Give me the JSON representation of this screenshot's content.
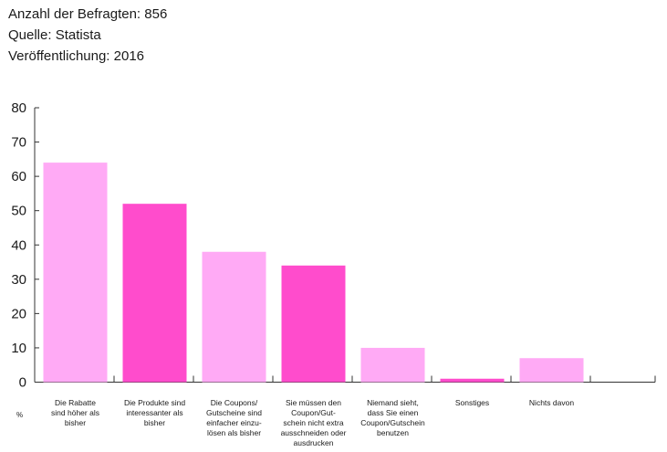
{
  "meta": {
    "respondents": "Anzahl der Befragten: 856",
    "source": "Quelle: Statista",
    "publication": "Veröffentlichung: 2016"
  },
  "chart_data": {
    "type": "bar",
    "title": "",
    "xlabel": "",
    "ylabel": "%",
    "ylim": [
      0,
      80
    ],
    "yticks": [
      "0",
      "10",
      "20",
      "30",
      "40",
      "50",
      "60",
      "70",
      "80"
    ],
    "grid": false,
    "categories": [
      [
        "Die Rabatte",
        "sind höher als",
        "bisher"
      ],
      [
        "Die Produkte sind",
        "interessanter als",
        "bisher"
      ],
      [
        "Die Coupons/",
        "Gutscheine sind",
        "einfacher einzu-",
        "lösen als bisher"
      ],
      [
        "Sie müssen den",
        "Coupon/Gut-",
        "schein nicht extra",
        "ausschneiden oder",
        "ausdrucken"
      ],
      [
        "Niemand sieht,",
        "dass Sie einen",
        "Coupon/Gutschein",
        "benutzen"
      ],
      [
        "Sonstiges"
      ],
      [
        "Nichts davon"
      ]
    ],
    "values": [
      64,
      52,
      38,
      34,
      10,
      1,
      7
    ],
    "colors": [
      "#ffaaf5",
      "#ff4ccc",
      "#ffaaf5",
      "#ff4ccc",
      "#ffaaf5",
      "#ff4ccc",
      "#ffaaf5"
    ]
  }
}
